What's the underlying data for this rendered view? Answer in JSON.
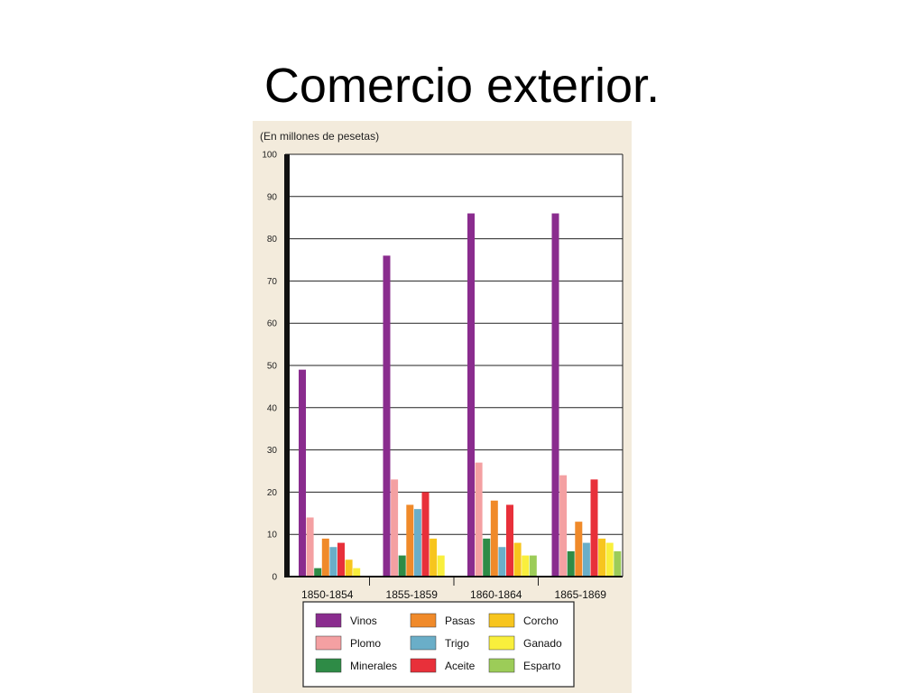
{
  "slide": {
    "title": "Comercio exterior."
  },
  "chart_data": {
    "type": "bar",
    "title": "",
    "ylabel": "(En millones de pesetas)",
    "xlabel": "",
    "ylim": [
      0,
      100
    ],
    "yticks": [
      0,
      10,
      20,
      30,
      40,
      50,
      60,
      70,
      80,
      90,
      100
    ],
    "grid": true,
    "legend_position": "bottom",
    "categories": [
      "1850-1854",
      "1855-1859",
      "1860-1864",
      "1865-1869"
    ],
    "series": [
      {
        "name": "Vinos",
        "color": "#8a2c8e",
        "values": [
          49,
          76,
          86,
          86
        ]
      },
      {
        "name": "Plomo",
        "color": "#f4a0a2",
        "values": [
          14,
          23,
          27,
          24
        ]
      },
      {
        "name": "Minerales",
        "color": "#2e8b46",
        "values": [
          2,
          5,
          9,
          6
        ]
      },
      {
        "name": "Pasas",
        "color": "#f08a2a",
        "values": [
          9,
          17,
          18,
          13
        ]
      },
      {
        "name": "Trigo",
        "color": "#6aaec8",
        "values": [
          7,
          16,
          7,
          8
        ]
      },
      {
        "name": "Aceite",
        "color": "#e8303a",
        "values": [
          8,
          20,
          17,
          23
        ]
      },
      {
        "name": "Corcho",
        "color": "#f7c51e",
        "values": [
          4,
          9,
          8,
          9
        ]
      },
      {
        "name": "Ganado",
        "color": "#f9ef3c",
        "values": [
          2,
          5,
          5,
          8
        ]
      },
      {
        "name": "Esparto",
        "color": "#9ccc58",
        "values": [
          0,
          0,
          5,
          6
        ]
      }
    ]
  }
}
